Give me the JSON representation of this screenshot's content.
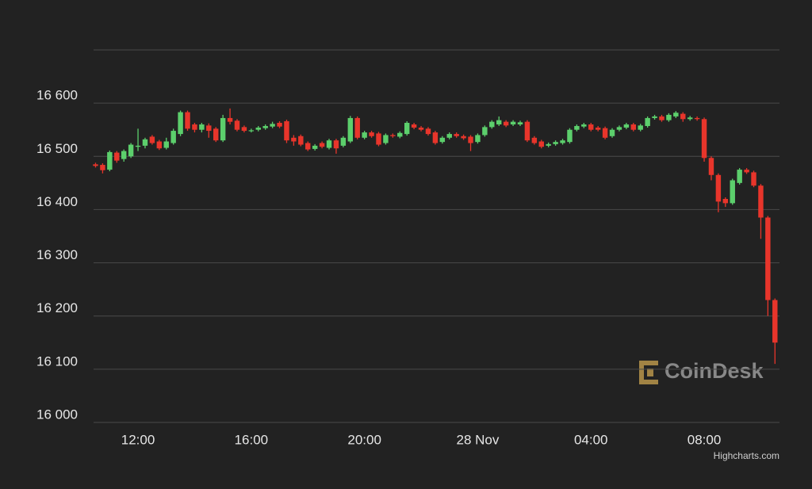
{
  "chart_data": {
    "type": "candlestick",
    "x": [
      10.5,
      10.75,
      11,
      11.25,
      11.5,
      11.75,
      12,
      12.25,
      12.5,
      12.75,
      13,
      13.25,
      13.5,
      13.75,
      14,
      14.25,
      14.5,
      14.75,
      15,
      15.25,
      15.5,
      15.75,
      16,
      16.25,
      16.5,
      16.75,
      17,
      17.25,
      17.5,
      17.75,
      18,
      18.25,
      18.5,
      18.75,
      19,
      19.25,
      19.5,
      19.75,
      20,
      20.25,
      20.5,
      20.75,
      21,
      21.25,
      21.5,
      21.75,
      22,
      22.25,
      22.5,
      22.75,
      23,
      23.25,
      23.5,
      23.75,
      24,
      24.25,
      24.5,
      24.75,
      25,
      25.25,
      25.5,
      25.75,
      26,
      26.25,
      26.5,
      26.75,
      27,
      27.25,
      27.5,
      27.75,
      28,
      28.25,
      28.5,
      28.75,
      29,
      29.25,
      29.5,
      29.75,
      30,
      30.25,
      30.5,
      30.75,
      31,
      31.25,
      31.5,
      31.75,
      32,
      32.25,
      32.5,
      32.75,
      33,
      33.25,
      33.5,
      33.75,
      34,
      34.25,
      34.5
    ],
    "open": [
      16485,
      16484,
      16475,
      16507,
      16495,
      16500,
      16518,
      16520,
      16537,
      16528,
      16516,
      16525,
      16542,
      16583,
      16560,
      16550,
      16558,
      16552,
      16530,
      16572,
      16567,
      16555,
      16548,
      16550,
      16553,
      16556,
      16563,
      16566,
      16535,
      16538,
      16525,
      16514,
      16525,
      16516,
      16530,
      16520,
      16528,
      16572,
      16535,
      16545,
      16543,
      16525,
      16540,
      16537,
      16542,
      16560,
      16554,
      16552,
      16545,
      16527,
      16535,
      16542,
      16538,
      16537,
      16527,
      16540,
      16555,
      16560,
      16565,
      16560,
      16560,
      16565,
      16535,
      16528,
      16520,
      16523,
      16525,
      16527,
      16550,
      16556,
      16560,
      16554,
      16553,
      16538,
      16550,
      16554,
      16560,
      16550,
      16557,
      16572,
      16575,
      16568,
      16575,
      16580,
      16570,
      16572,
      16570,
      16497,
      16465,
      16420,
      16412,
      16450,
      16475,
      16470,
      16445,
      16385,
      16230
    ],
    "high": [
      16488,
      16487,
      16511,
      16510,
      16513,
      16525,
      16552,
      16535,
      16540,
      16531,
      16535,
      16552,
      16586,
      16586,
      16563,
      16563,
      16562,
      16555,
      16578,
      16590,
      16570,
      16558,
      16552,
      16557,
      16560,
      16565,
      16566,
      16569,
      16540,
      16541,
      16528,
      16523,
      16528,
      16533,
      16533,
      16538,
      16576,
      16575,
      16548,
      16548,
      16546,
      16543,
      16543,
      16547,
      16566,
      16563,
      16557,
      16555,
      16548,
      16538,
      16545,
      16545,
      16541,
      16540,
      16543,
      16558,
      16568,
      16575,
      16568,
      16568,
      16567,
      16568,
      16538,
      16531,
      16526,
      16530,
      16533,
      16553,
      16560,
      16563,
      16563,
      16557,
      16556,
      16553,
      16558,
      16563,
      16563,
      16561,
      16575,
      16578,
      16578,
      16581,
      16585,
      16583,
      16576,
      16575,
      16573,
      16500,
      16468,
      16423,
      16458,
      16478,
      16478,
      16473,
      16448,
      16388,
      16233
    ],
    "low": [
      16479,
      16468,
      16472,
      16488,
      16490,
      16497,
      16510,
      16515,
      16522,
      16512,
      16513,
      16522,
      16538,
      16548,
      16545,
      16545,
      16535,
      16527,
      16527,
      16560,
      16547,
      16545,
      16545,
      16547,
      16550,
      16553,
      16553,
      16525,
      16520,
      16519,
      16510,
      16511,
      16515,
      16513,
      16505,
      16517,
      16525,
      16532,
      16532,
      16535,
      16519,
      16522,
      16535,
      16534,
      16539,
      16551,
      16547,
      16539,
      16522,
      16524,
      16532,
      16535,
      16531,
      16510,
      16524,
      16537,
      16552,
      16557,
      16555,
      16557,
      16557,
      16527,
      16522,
      16515,
      16517,
      16520,
      16522,
      16524,
      16547,
      16553,
      16547,
      16547,
      16532,
      16535,
      16547,
      16551,
      16547,
      16547,
      16554,
      16569,
      16565,
      16565,
      16572,
      16565,
      16567,
      16567,
      16490,
      16455,
      16395,
      16405,
      16409,
      16447,
      16467,
      16442,
      16345,
      16200,
      16110
    ],
    "close": [
      16482,
      16474,
      16508,
      16492,
      16510,
      16522,
      16520,
      16532,
      16525,
      16515,
      16528,
      16548,
      16583,
      16552,
      16550,
      16560,
      16548,
      16530,
      16572,
      16565,
      16550,
      16548,
      16549,
      16554,
      16557,
      16561,
      16556,
      16530,
      16528,
      16522,
      16513,
      16520,
      16518,
      16530,
      16515,
      16535,
      16572,
      16535,
      16545,
      16538,
      16522,
      16540,
      16538,
      16544,
      16563,
      16554,
      16550,
      16542,
      16525,
      16535,
      16542,
      16538,
      16534,
      16525,
      16540,
      16555,
      16565,
      16568,
      16558,
      16565,
      16564,
      16530,
      16525,
      16518,
      16523,
      16527,
      16530,
      16550,
      16557,
      16560,
      16550,
      16550,
      16535,
      16550,
      16555,
      16560,
      16550,
      16558,
      16572,
      16575,
      16568,
      16578,
      16582,
      16570,
      16573,
      16570,
      16497,
      16465,
      16415,
      16412,
      16455,
      16475,
      16470,
      16445,
      16385,
      16230,
      16150
    ],
    "up_color": "#5ccf6c",
    "down_color": "#e8352b",
    "xlim": [
      10.43,
      34.66
    ],
    "xticks": [
      {
        "value": 12,
        "label": "12:00"
      },
      {
        "value": 16,
        "label": "16:00"
      },
      {
        "value": 20,
        "label": "20:00"
      },
      {
        "value": 24,
        "label": "28 Nov"
      },
      {
        "value": 28,
        "label": "04:00"
      },
      {
        "value": 32,
        "label": "08:00"
      }
    ],
    "ylim": [
      16000,
      16700
    ],
    "yticks": [
      {
        "value": 16000,
        "label": "16 000"
      },
      {
        "value": 16100,
        "label": "16 100"
      },
      {
        "value": 16200,
        "label": "16 200"
      },
      {
        "value": 16300,
        "label": "16 300"
      },
      {
        "value": 16400,
        "label": "16 400"
      },
      {
        "value": 16500,
        "label": "16 500"
      },
      {
        "value": 16600,
        "label": "16 600"
      }
    ],
    "grid": true,
    "watermark": "CoinDesk",
    "credits": "Highcharts.com"
  }
}
